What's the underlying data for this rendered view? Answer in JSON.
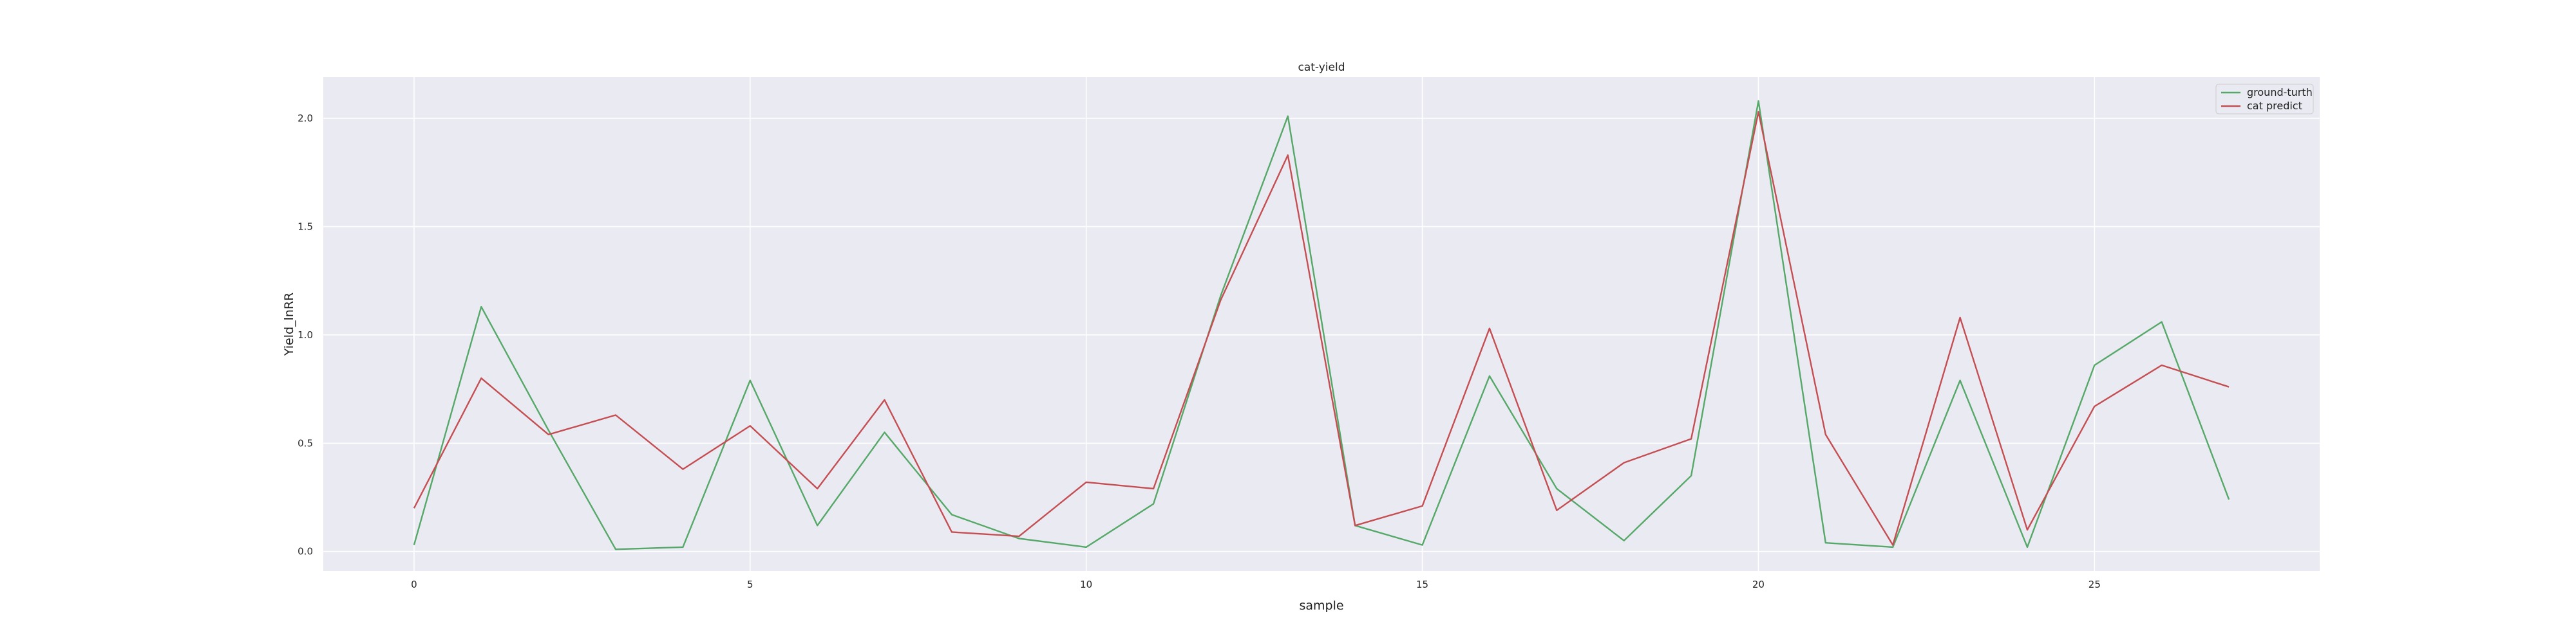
{
  "chart_data": {
    "type": "line",
    "title": "cat-yield",
    "xlabel": "sample",
    "ylabel": "Yield_lnRR",
    "x": [
      0,
      1,
      2,
      3,
      4,
      5,
      6,
      7,
      8,
      9,
      10,
      11,
      12,
      13,
      14,
      15,
      16,
      17,
      18,
      19,
      20,
      21,
      22,
      23,
      24,
      25,
      26,
      27
    ],
    "xlim": [
      -1.35,
      28.35
    ],
    "ylim": [
      -0.09,
      2.19
    ],
    "xticks": [
      0,
      5,
      10,
      15,
      20,
      25
    ],
    "xtick_labels": [
      "0",
      "5",
      "10",
      "15",
      "20",
      "25"
    ],
    "yticks": [
      0.0,
      0.5,
      1.0,
      1.5,
      2.0
    ],
    "ytick_labels": [
      "0.0",
      "0.5",
      "1.0",
      "1.5",
      "2.0"
    ],
    "grid": true,
    "legend_position": "top-right",
    "background_color": "#eaeaf2",
    "grid_color": "#ffffff",
    "series": [
      {
        "name": "ground-turth",
        "color": "#55a868",
        "values": [
          0.03,
          1.13,
          0.56,
          0.01,
          0.02,
          0.79,
          0.12,
          0.55,
          0.17,
          0.06,
          0.02,
          0.22,
          1.18,
          2.01,
          0.12,
          0.03,
          0.81,
          0.29,
          0.05,
          0.35,
          2.08,
          0.04,
          0.02,
          0.79,
          0.02,
          0.86,
          1.06,
          0.24
        ]
      },
      {
        "name": "cat predict",
        "color": "#c44e52",
        "values": [
          0.2,
          0.8,
          0.54,
          0.63,
          0.38,
          0.58,
          0.29,
          0.7,
          0.09,
          0.07,
          0.32,
          0.29,
          1.16,
          1.83,
          0.12,
          0.21,
          1.03,
          0.19,
          0.41,
          0.52,
          2.03,
          0.54,
          0.03,
          1.08,
          0.1,
          0.67,
          0.86,
          0.76
        ]
      }
    ]
  }
}
